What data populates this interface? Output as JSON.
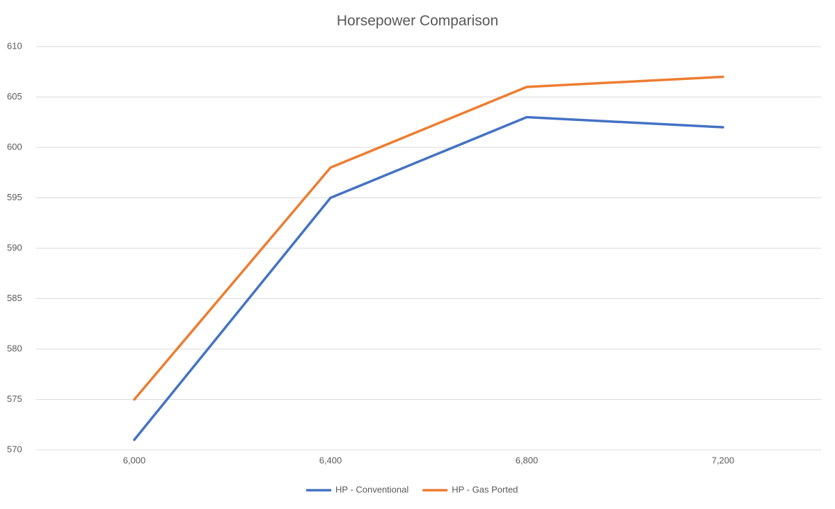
{
  "chart_data": {
    "type": "line",
    "title": "Horsepower Comparison",
    "categories": [
      "6,000",
      "6,400",
      "6,800",
      "7,200"
    ],
    "series": [
      {
        "name": "HP - Conventional",
        "color": "#4472c4",
        "values": [
          571,
          595,
          603,
          602
        ]
      },
      {
        "name": "HP - Gas Ported",
        "color": "#ed7d31",
        "values": [
          575,
          598,
          606,
          607
        ]
      }
    ],
    "ylim": [
      570,
      610
    ],
    "yticks": [
      570,
      575,
      580,
      585,
      590,
      595,
      600,
      605,
      610
    ],
    "grid": true,
    "legend": "bottom"
  }
}
